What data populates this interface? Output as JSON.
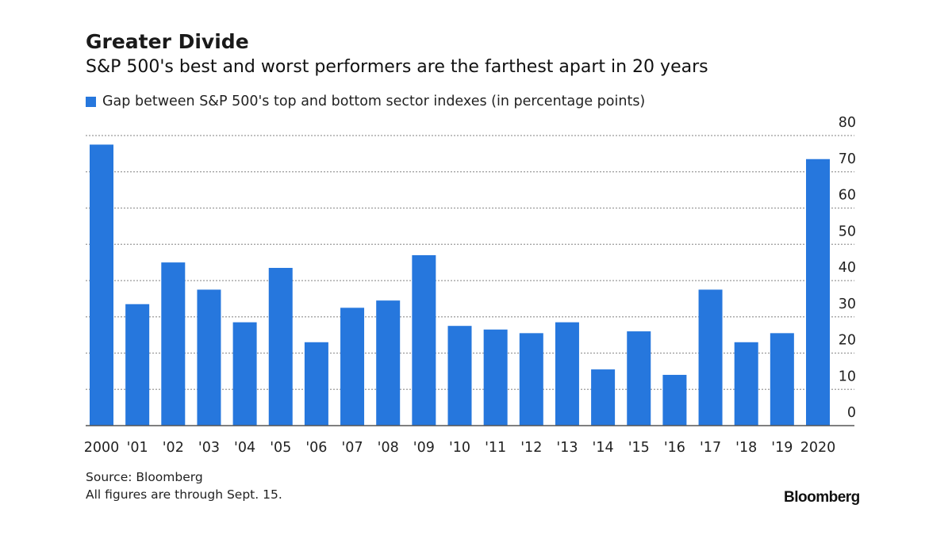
{
  "title": "Greater Divide",
  "subtitle": "S&P 500's best and worst performers are the farthest apart in 20 years",
  "source": "Source: Bloomberg",
  "note": "All figures are through Sept. 15.",
  "logo": "Bloomberg",
  "colors": {
    "bar": "#2677dd",
    "grid": "#9a9a9a",
    "axis": "#555555"
  },
  "chart_data": {
    "type": "bar",
    "title": "Greater Divide",
    "subtitle": "S&P 500's best and worst performers are the farthest apart in 20 years",
    "categories": [
      "2000",
      "'01",
      "'02",
      "'03",
      "'04",
      "'05",
      "'06",
      "'07",
      "'08",
      "'09",
      "'10",
      "'11",
      "'12",
      "'13",
      "'14",
      "'15",
      "'16",
      "'17",
      "'18",
      "'19",
      "2020"
    ],
    "series": [
      {
        "name": "Gap between S&P 500's top and bottom sector indexes (in percentage points)",
        "values": [
          77.5,
          33.5,
          45,
          37.5,
          28.5,
          43.5,
          23,
          32.5,
          34.5,
          47,
          27.5,
          26.5,
          25.5,
          28.5,
          15.5,
          26,
          14,
          37.5,
          23,
          25.5,
          73.5
        ]
      }
    ],
    "xlabel": "",
    "ylabel": "",
    "ylim": [
      0,
      80
    ],
    "yticks": [
      0,
      10,
      20,
      30,
      40,
      50,
      60,
      70,
      80
    ],
    "grid": true,
    "y_axis_side": "right",
    "legend": "top-left"
  }
}
